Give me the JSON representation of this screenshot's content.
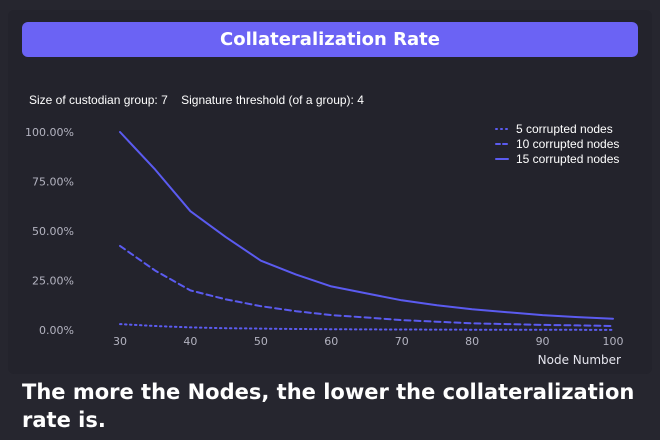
{
  "title": "Collateralization Rate",
  "params": {
    "group_size": "Size of custodian group: 7",
    "threshold": "Signature threshold (of a group): 4"
  },
  "caption": "The more the Nodes, the lower the collateralization rate is.",
  "colors": {
    "accent": "#6b63f4",
    "background": "#26262f",
    "line": "#5b5bf0"
  },
  "chart_data": {
    "type": "line",
    "title": "Collateralization Rate",
    "xlabel": "Node Number",
    "ylabel": "",
    "x_ticks": [
      30,
      40,
      50,
      60,
      70,
      80,
      90,
      100
    ],
    "y_ticks": [
      "0.00%",
      "25.00%",
      "50.00%",
      "75.00%",
      "100.00%"
    ],
    "y_tick_values": [
      0,
      25,
      50,
      75,
      100
    ],
    "xlim": [
      30,
      100
    ],
    "ylim": [
      0,
      100
    ],
    "grid": false,
    "legend_position": "top-right",
    "series": [
      {
        "name": "5 corrupted nodes",
        "style": "dotted",
        "x": [
          30,
          35,
          40,
          45,
          50,
          55,
          60,
          65,
          70,
          75,
          80,
          85,
          90,
          95,
          100
        ],
        "values": [
          3,
          2,
          1.3,
          0.9,
          0.7,
          0.5,
          0.4,
          0.3,
          0.25,
          0.2,
          0.15,
          0.12,
          0.1,
          0.08,
          0.07
        ]
      },
      {
        "name": "10 corrupted nodes",
        "style": "dashed",
        "x": [
          30,
          35,
          40,
          45,
          50,
          55,
          60,
          65,
          70,
          75,
          80,
          85,
          90,
          95,
          100
        ],
        "values": [
          42.5,
          30,
          20,
          15.5,
          12,
          9.5,
          7.5,
          6.3,
          5,
          4.2,
          3.4,
          3,
          2.6,
          2.3,
          2
        ]
      },
      {
        "name": "15 corrupted nodes",
        "style": "solid",
        "x": [
          30,
          35,
          40,
          45,
          50,
          55,
          60,
          65,
          70,
          75,
          80,
          85,
          90,
          95,
          100
        ],
        "values": [
          100,
          81,
          60,
          47,
          35,
          28,
          22,
          18.5,
          15,
          12.5,
          10.5,
          9,
          7.5,
          6.5,
          5.7
        ]
      }
    ]
  }
}
